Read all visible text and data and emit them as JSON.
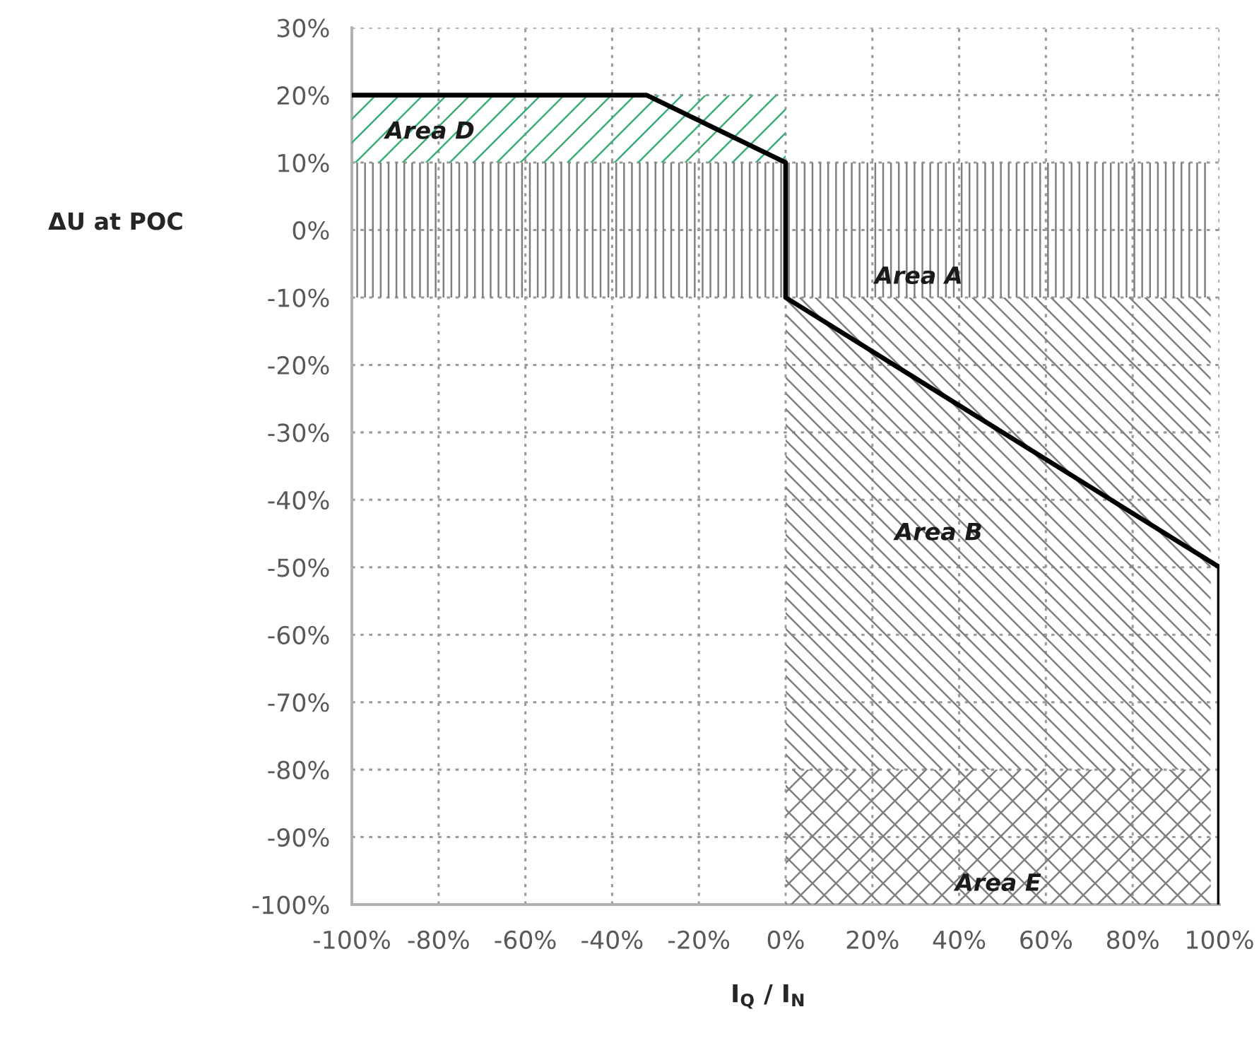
{
  "chart_data": {
    "type": "area",
    "xlabel": "I$_{Q}$ / I$_{N}$",
    "ylabel": "ΔU at POC",
    "xlim": [
      -100,
      100
    ],
    "ylim": [
      -100,
      30
    ],
    "xticks": [
      {
        "value": -100,
        "label": "-100%"
      },
      {
        "value": -80,
        "label": "-80%"
      },
      {
        "value": -60,
        "label": "-60%"
      },
      {
        "value": -40,
        "label": "-40%"
      },
      {
        "value": -20,
        "label": "-20%"
      },
      {
        "value": 0,
        "label": "0%"
      },
      {
        "value": 20,
        "label": "20%"
      },
      {
        "value": 40,
        "label": "40%"
      },
      {
        "value": 60,
        "label": "60%"
      },
      {
        "value": 80,
        "label": "80%"
      },
      {
        "value": 100,
        "label": "100%"
      }
    ],
    "yticks": [
      {
        "value": -100,
        "label": "-100%"
      },
      {
        "value": -90,
        "label": "-90%"
      },
      {
        "value": -80,
        "label": "-80%"
      },
      {
        "value": -70,
        "label": "-70%"
      },
      {
        "value": -60,
        "label": "-60%"
      },
      {
        "value": -50,
        "label": "-50%"
      },
      {
        "value": -40,
        "label": "-40%"
      },
      {
        "value": -30,
        "label": "-30%"
      },
      {
        "value": -20,
        "label": "-20%"
      },
      {
        "value": -10,
        "label": "-10%"
      },
      {
        "value": 0,
        "label": "0%"
      },
      {
        "value": 10,
        "label": "10%"
      },
      {
        "value": 20,
        "label": "20%"
      },
      {
        "value": 30,
        "label": "30%"
      }
    ],
    "grid": true,
    "series": [
      {
        "name": "Area A",
        "color": "#7f7f7f",
        "x": [
          -100,
          98,
          98,
          -100
        ],
        "values": [
          10,
          10,
          -10,
          -10
        ]
      },
      {
        "name": "Area B",
        "color": "#7f7f7f",
        "x": [
          0,
          98,
          98,
          0
        ],
        "values": [
          -10,
          -10,
          -80,
          -80
        ]
      },
      {
        "name": "Area D",
        "color": "#3aae74",
        "x": [
          -100,
          0,
          0,
          -100
        ],
        "values": [
          20,
          20,
          10,
          10
        ]
      },
      {
        "name": "Area E",
        "color": "#7f7f7f",
        "x": [
          0,
          98,
          98,
          0
        ],
        "values": [
          -80,
          -80,
          -100,
          -100
        ]
      },
      {
        "type": "line",
        "color": "#000000",
        "x": [
          -100,
          -32,
          0,
          0,
          100,
          100
        ],
        "values": [
          20,
          20,
          10,
          -10,
          -50,
          -100
        ]
      }
    ]
  }
}
